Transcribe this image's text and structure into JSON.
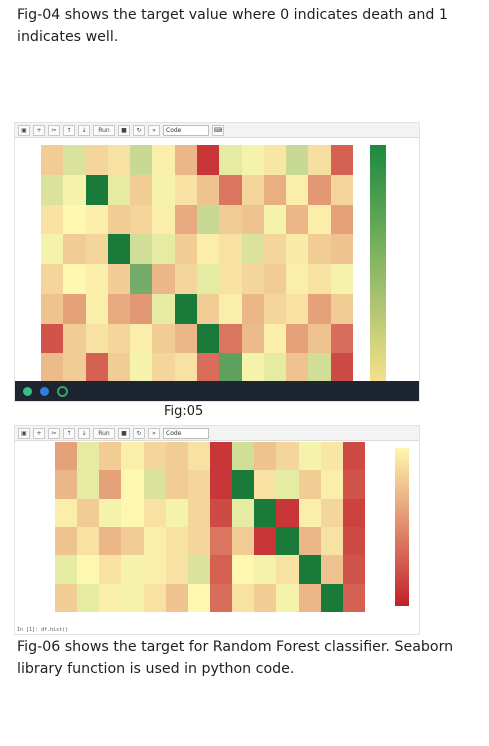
{
  "paragraph_top": "Fig-04 shows the target value where 0 indicates death and 1 indicates well.",
  "figure_caption": "Fig:05",
  "paragraph_bottom": "Fig-06 shows the target for Random Forest classifier. Seaborn library function is used in python code.",
  "toolbar": {
    "run_label": "Run",
    "cell_type": "Code",
    "icons": [
      "save-icon",
      "add-icon",
      "cut-icon",
      "copy-icon",
      "paste-icon",
      "up-icon",
      "down-icon",
      "run-icon",
      "stop-icon",
      "restart-icon",
      "fastforward-icon",
      "keyboard-icon"
    ]
  },
  "input_cell_text": "In [1]: df.hist()",
  "colors": {
    "high": "#1a7a3a",
    "mid": "#fdf7b0",
    "low": "#c2202a"
  },
  "chart_data": [
    {
      "type": "heatmap",
      "colorbar": {
        "from": "#f4e18a",
        "to": "#1a8a3d"
      },
      "values": [
        [
          0.4,
          0.58,
          0.42,
          0.45,
          0.62,
          0.48,
          0.35,
          0.05,
          0.55,
          0.52,
          0.46,
          0.62,
          0.44,
          0.15
        ],
        [
          0.58,
          0.52,
          1.0,
          0.55,
          0.4,
          0.52,
          0.45,
          0.38,
          0.2,
          0.42,
          0.33,
          0.48,
          0.28,
          0.42
        ],
        [
          0.45,
          0.5,
          0.48,
          0.4,
          0.42,
          0.48,
          0.32,
          0.62,
          0.4,
          0.38,
          0.52,
          0.35,
          0.48,
          0.3
        ],
        [
          0.52,
          0.4,
          0.42,
          1.0,
          0.6,
          0.55,
          0.4,
          0.48,
          0.45,
          0.58,
          0.42,
          0.47,
          0.4,
          0.38
        ],
        [
          0.42,
          0.5,
          0.48,
          0.4,
          0.8,
          0.35,
          0.42,
          0.55,
          0.45,
          0.42,
          0.4,
          0.48,
          0.45,
          0.52
        ],
        [
          0.38,
          0.3,
          0.48,
          0.32,
          0.28,
          0.55,
          1.0,
          0.4,
          0.48,
          0.35,
          0.42,
          0.45,
          0.3,
          0.4
        ],
        [
          0.12,
          0.4,
          0.45,
          0.42,
          0.48,
          0.4,
          0.35,
          1.0,
          0.2,
          0.36,
          0.48,
          0.3,
          0.38,
          0.18
        ],
        [
          0.36,
          0.4,
          0.15,
          0.4,
          0.52,
          0.42,
          0.45,
          0.18,
          0.85,
          0.52,
          0.55,
          0.38,
          0.6,
          0.1
        ]
      ]
    },
    {
      "type": "heatmap",
      "colorbar": {
        "from": "#c2202a",
        "to": "#fdf7b0"
      },
      "values": [
        [
          0.3,
          0.55,
          0.4,
          0.48,
          0.42,
          0.4,
          0.45,
          0.05,
          0.6,
          0.38,
          0.42,
          0.52,
          0.46,
          0.1
        ],
        [
          0.35,
          0.55,
          0.3,
          0.5,
          0.58,
          0.4,
          0.42,
          0.05,
          1.0,
          0.45,
          0.55,
          0.4,
          0.48,
          0.12
        ],
        [
          0.48,
          0.4,
          0.52,
          0.5,
          0.45,
          0.52,
          0.42,
          0.1,
          0.55,
          1.0,
          0.05,
          0.48,
          0.42,
          0.08
        ],
        [
          0.38,
          0.45,
          0.35,
          0.4,
          0.48,
          0.45,
          0.42,
          0.2,
          0.4,
          0.05,
          1.0,
          0.35,
          0.45,
          0.1
        ],
        [
          0.55,
          0.5,
          0.45,
          0.52,
          0.48,
          0.45,
          0.58,
          0.15,
          0.5,
          0.52,
          0.45,
          1.0,
          0.38,
          0.12
        ],
        [
          0.4,
          0.55,
          0.48,
          0.52,
          0.45,
          0.38,
          0.5,
          0.18,
          0.45,
          0.4,
          0.52,
          0.35,
          1.0,
          0.15
        ]
      ]
    }
  ]
}
